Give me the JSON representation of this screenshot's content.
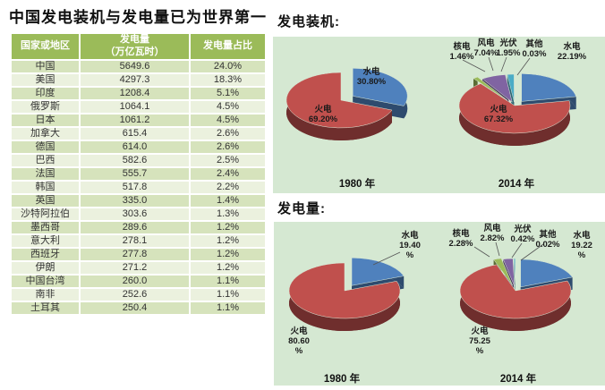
{
  "title": "中国发电装机与发电量已为世界第一",
  "table": {
    "headers": [
      "国家或地区",
      "发电量\n（万亿瓦时）",
      "发电量占比"
    ],
    "rows": [
      [
        "中国",
        "5649.6",
        "24.0%"
      ],
      [
        "美国",
        "4297.3",
        "18.3%"
      ],
      [
        "印度",
        "1208.4",
        "5.1%"
      ],
      [
        "俄罗斯",
        "1064.1",
        "4.5%"
      ],
      [
        "日本",
        "1061.2",
        "4.5%"
      ],
      [
        "加拿大",
        "615.4",
        "2.6%"
      ],
      [
        "德国",
        "614.0",
        "2.6%"
      ],
      [
        "巴西",
        "582.6",
        "2.5%"
      ],
      [
        "法国",
        "555.7",
        "2.4%"
      ],
      [
        "韩国",
        "517.8",
        "2.2%"
      ],
      [
        "英国",
        "335.0",
        "1.4%"
      ],
      [
        "沙特阿拉伯",
        "303.6",
        "1.3%"
      ],
      [
        "墨西哥",
        "289.6",
        "1.2%"
      ],
      [
        "意大利",
        "278.1",
        "1.2%"
      ],
      [
        "西班牙",
        "277.8",
        "1.2%"
      ],
      [
        "伊朗",
        "271.2",
        "1.2%"
      ],
      [
        "中国台湾",
        "260.0",
        "1.1%"
      ],
      [
        "南非",
        "252.6",
        "1.1%"
      ],
      [
        "土耳其",
        "250.4",
        "1.1%"
      ]
    ]
  },
  "chart_data": [
    {
      "type": "pie",
      "title": "发电装机:",
      "unit": "%",
      "pies": [
        {
          "year": "1980 年",
          "slices": [
            {
              "name": "水电",
              "value": 30.8,
              "pct": "30.80%"
            },
            {
              "name": "火电",
              "value": 69.2,
              "pct": "69.20%"
            }
          ]
        },
        {
          "year": "2014 年",
          "slices": [
            {
              "name": "水电",
              "value": 22.19,
              "pct": "22.19%"
            },
            {
              "name": "火电",
              "value": 67.32,
              "pct": "67.32%"
            },
            {
              "name": "核电",
              "value": 1.46,
              "pct": "1.46%"
            },
            {
              "name": "风电",
              "value": 7.04,
              "pct": "7.04%"
            },
            {
              "name": "光伏",
              "value": 1.95,
              "pct": "1.95%"
            },
            {
              "name": "其他",
              "value": 0.03,
              "pct": "0.03%"
            }
          ]
        }
      ]
    },
    {
      "type": "pie",
      "title": "发电量:",
      "unit": "%",
      "pies": [
        {
          "year": "1980 年",
          "slices": [
            {
              "name": "水电",
              "value": 19.4,
              "pct": "19.40\n%"
            },
            {
              "name": "火电",
              "value": 80.6,
              "pct": "80.60\n%"
            }
          ]
        },
        {
          "year": "2014 年",
          "slices": [
            {
              "name": "水电",
              "value": 19.22,
              "pct": "19.22\n%"
            },
            {
              "name": "火电",
              "value": 75.25,
              "pct": "75.25\n%"
            },
            {
              "name": "核电",
              "value": 2.28,
              "pct": "2.28%"
            },
            {
              "name": "风电",
              "value": 2.82,
              "pct": "2.82%"
            },
            {
              "name": "光伏",
              "value": 0.42,
              "pct": "0.42%"
            },
            {
              "name": "其他",
              "value": 0.02,
              "pct": "0.02%"
            }
          ]
        }
      ]
    }
  ],
  "colors": {
    "水电": "#4F81BD",
    "火电": "#C0504D",
    "核电": "#9BBB59",
    "风电": "#8064A2",
    "光伏": "#4BACC6",
    "其他": "#F79646",
    "panel_background": "#D5E8D2",
    "table_header": "#9BBB59",
    "row_odd": "#D6E3BC",
    "row_even": "#EBF1DE"
  }
}
